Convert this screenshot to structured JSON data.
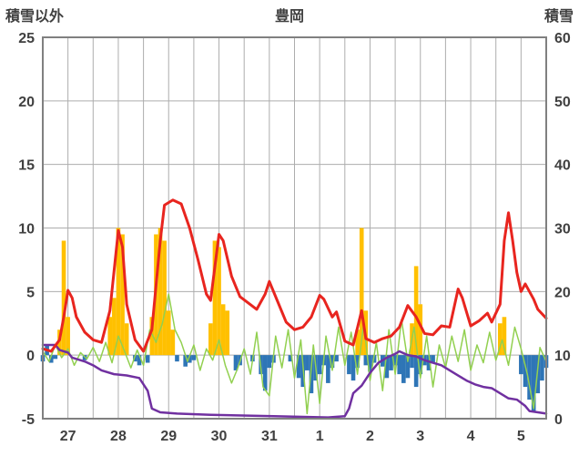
{
  "header": {
    "left_axis_title": "積雪以外",
    "center_title": "豊岡",
    "right_axis_title": "積雪"
  },
  "chart_data": {
    "type": "line",
    "title": "豊岡",
    "x_unit": "hours from day 27 00:00 (hourly weather chart)",
    "x_range": [
      0,
      240
    ],
    "gridline_every_hours": 12,
    "grid_color": "#ADADAD",
    "border_color": "#808080",
    "left_axis": {
      "title": "積雪以外",
      "range": [
        -5,
        25
      ],
      "ticks": [
        25,
        20,
        15,
        10,
        5,
        0,
        -5
      ]
    },
    "right_axis": {
      "title": "積雪",
      "range": [
        0,
        60
      ],
      "ticks": [
        60,
        50,
        40,
        30,
        20,
        10,
        0
      ]
    },
    "x_ticks": [
      {
        "hour": 12,
        "label": "27"
      },
      {
        "hour": 36,
        "label": "28"
      },
      {
        "hour": 60,
        "label": "29"
      },
      {
        "hour": 84,
        "label": "30"
      },
      {
        "hour": 108,
        "label": "31"
      },
      {
        "hour": 132,
        "label": "1"
      },
      {
        "hour": 156,
        "label": "2"
      },
      {
        "hour": 180,
        "label": "3"
      },
      {
        "hour": 204,
        "label": "4"
      },
      {
        "hour": 228,
        "label": "5"
      }
    ],
    "series": [
      {
        "name": "yellow-bars",
        "type": "bar",
        "color": "#FFC000",
        "bar_width_hours": 2,
        "points": [
          [
            8,
            2
          ],
          [
            10,
            9
          ],
          [
            12,
            3
          ],
          [
            32,
            3
          ],
          [
            34,
            4.5
          ],
          [
            36,
            10
          ],
          [
            38,
            9.5
          ],
          [
            40,
            2.5
          ],
          [
            52,
            3
          ],
          [
            54,
            9.5
          ],
          [
            56,
            10
          ],
          [
            58,
            9
          ],
          [
            60,
            3.5
          ],
          [
            62,
            2
          ],
          [
            80,
            2.5
          ],
          [
            82,
            9
          ],
          [
            84,
            8.5
          ],
          [
            86,
            4
          ],
          [
            88,
            3.5
          ],
          [
            150,
            2
          ],
          [
            152,
            10
          ],
          [
            154,
            3.5
          ],
          [
            176,
            2.5
          ],
          [
            178,
            7
          ],
          [
            180,
            4
          ],
          [
            218,
            2.5
          ],
          [
            220,
            3
          ]
        ]
      },
      {
        "name": "blue-bars",
        "type": "bar",
        "color": "#2E75B6",
        "bar_width_hours": 2,
        "points": [
          [
            0,
            -0.5
          ],
          [
            2,
            0.8
          ],
          [
            4,
            -0.6
          ],
          [
            6,
            -0.3
          ],
          [
            20,
            -0.4
          ],
          [
            44,
            -0.5
          ],
          [
            46,
            -0.8
          ],
          [
            50,
            -0.6
          ],
          [
            64,
            -0.5
          ],
          [
            68,
            -0.9
          ],
          [
            70,
            -0.6
          ],
          [
            72,
            -0.4
          ],
          [
            92,
            -1.2
          ],
          [
            94,
            -0.8
          ],
          [
            100,
            -0.5
          ],
          [
            104,
            -1.5
          ],
          [
            106,
            -2.8
          ],
          [
            108,
            -1.0
          ],
          [
            110,
            -0.6
          ],
          [
            118,
            -0.5
          ],
          [
            122,
            -1.8
          ],
          [
            124,
            -2.5
          ],
          [
            126,
            -1.2
          ],
          [
            128,
            -3.0
          ],
          [
            130,
            -2.0
          ],
          [
            132,
            -1.5
          ],
          [
            134,
            -0.8
          ],
          [
            136,
            -2.2
          ],
          [
            138,
            -1.0
          ],
          [
            140,
            -0.5
          ],
          [
            146,
            -1.5
          ],
          [
            148,
            -2.0
          ],
          [
            150,
            -1.0
          ],
          [
            154,
            -0.8
          ],
          [
            156,
            -1.3
          ],
          [
            158,
            -0.6
          ],
          [
            162,
            -0.9
          ],
          [
            164,
            -1.8
          ],
          [
            166,
            -1.2
          ],
          [
            168,
            -0.8
          ],
          [
            170,
            -1.5
          ],
          [
            172,
            -2.2
          ],
          [
            174,
            -1.8
          ],
          [
            176,
            -1.0
          ],
          [
            178,
            -2.5
          ],
          [
            180,
            -1.5
          ],
          [
            182,
            -0.8
          ],
          [
            184,
            -1.2
          ],
          [
            186,
            -0.6
          ],
          [
            228,
            -1.5
          ],
          [
            230,
            -2.5
          ],
          [
            232,
            -3.5
          ],
          [
            234,
            -4.5
          ],
          [
            236,
            -3.0
          ],
          [
            238,
            -2.0
          ],
          [
            240,
            -1.0
          ]
        ]
      },
      {
        "name": "green-line",
        "type": "line-sampled",
        "color": "#92D050",
        "width": 1.5,
        "start_hour": 0,
        "step_hours": 3,
        "values": [
          0.3,
          -0.5,
          0.8,
          -0.2,
          0.5,
          -0.8,
          0.2,
          -0.3,
          0.6,
          -0.5,
          1.0,
          -0.6,
          1.5,
          0.3,
          -1.0,
          0.4,
          -0.8,
          2.0,
          1.0,
          2.5,
          4.8,
          2.0,
          1.0,
          -0.5,
          0.8,
          -1.2,
          0.5,
          -0.4,
          1.2,
          -0.8,
          -2.2,
          -1.0,
          0.5,
          -1.5,
          1.8,
          -2.5,
          -3.2,
          1.5,
          -1.0,
          2.0,
          -1.8,
          1.2,
          -4.6,
          0.8,
          -3.8,
          1.5,
          -1.2,
          2.2,
          -0.8,
          1.8,
          -1.5,
          2.5,
          -2.0,
          1.0,
          -2.8,
          2.0,
          -1.5,
          2.8,
          -0.5,
          2.2,
          -1.8,
          1.5,
          -2.5,
          0.8,
          -1.0,
          1.5,
          -0.5,
          2.0,
          -1.2,
          0.8,
          -0.6,
          1.8,
          -0.4,
          1.2,
          -0.8,
          2.2,
          0.5,
          -1.5,
          -4.2,
          0.6,
          -0.5
        ]
      },
      {
        "name": "purple-snow-depth-line",
        "type": "line",
        "color": "#7030A0",
        "width": 2.5,
        "points": [
          [
            0,
            0.8
          ],
          [
            6,
            0.8
          ],
          [
            8,
            0.4
          ],
          [
            12,
            0.2
          ],
          [
            14,
            -0.2
          ],
          [
            20,
            -0.5
          ],
          [
            24,
            -0.8
          ],
          [
            28,
            -1.2
          ],
          [
            34,
            -1.5
          ],
          [
            40,
            -1.6
          ],
          [
            46,
            -1.8
          ],
          [
            50,
            -2.8
          ],
          [
            52,
            -4.2
          ],
          [
            56,
            -4.5
          ],
          [
            64,
            -4.6
          ],
          [
            80,
            -4.7
          ],
          [
            110,
            -4.8
          ],
          [
            136,
            -4.9
          ],
          [
            144,
            -4.8
          ],
          [
            146,
            -4.2
          ],
          [
            148,
            -3.0
          ],
          [
            152,
            -2.4
          ],
          [
            156,
            -1.4
          ],
          [
            160,
            -0.6
          ],
          [
            164,
            -0.2
          ],
          [
            168,
            0.1
          ],
          [
            170,
            0.3
          ],
          [
            174,
            0.0
          ],
          [
            178,
            -0.1
          ],
          [
            182,
            -0.4
          ],
          [
            186,
            -0.6
          ],
          [
            190,
            -0.8
          ],
          [
            194,
            -1.2
          ],
          [
            198,
            -1.6
          ],
          [
            202,
            -2.0
          ],
          [
            206,
            -2.3
          ],
          [
            210,
            -2.5
          ],
          [
            214,
            -2.6
          ],
          [
            218,
            -3.0
          ],
          [
            222,
            -3.4
          ],
          [
            226,
            -3.5
          ],
          [
            230,
            -4.0
          ],
          [
            232,
            -4.4
          ],
          [
            236,
            -4.5
          ],
          [
            240,
            -4.6
          ]
        ]
      },
      {
        "name": "red-temperature-line",
        "type": "line",
        "color": "#E8251F",
        "width": 3,
        "points": [
          [
            0,
            0.5
          ],
          [
            4,
            0.3
          ],
          [
            8,
            1.2
          ],
          [
            10,
            3.0
          ],
          [
            12,
            5.1
          ],
          [
            14,
            4.5
          ],
          [
            16,
            3.0
          ],
          [
            20,
            1.8
          ],
          [
            24,
            1.2
          ],
          [
            28,
            1.0
          ],
          [
            32,
            3.5
          ],
          [
            36,
            9.8
          ],
          [
            38,
            8.5
          ],
          [
            40,
            4.0
          ],
          [
            44,
            1.2
          ],
          [
            48,
            0.3
          ],
          [
            52,
            2.0
          ],
          [
            56,
            9.0
          ],
          [
            58,
            11.8
          ],
          [
            62,
            12.2
          ],
          [
            66,
            11.9
          ],
          [
            70,
            10.0
          ],
          [
            74,
            7.5
          ],
          [
            78,
            4.8
          ],
          [
            80,
            4.3
          ],
          [
            84,
            9.5
          ],
          [
            86,
            9.0
          ],
          [
            90,
            6.2
          ],
          [
            94,
            4.6
          ],
          [
            98,
            4.1
          ],
          [
            102,
            3.6
          ],
          [
            106,
            4.8
          ],
          [
            108,
            5.8
          ],
          [
            112,
            4.2
          ],
          [
            116,
            2.6
          ],
          [
            120,
            2.0
          ],
          [
            124,
            2.2
          ],
          [
            128,
            3.0
          ],
          [
            132,
            4.7
          ],
          [
            134,
            4.4
          ],
          [
            138,
            3.0
          ],
          [
            140,
            3.4
          ],
          [
            144,
            1.1
          ],
          [
            148,
            0.8
          ],
          [
            152,
            3.5
          ],
          [
            154,
            1.3
          ],
          [
            158,
            1.0
          ],
          [
            162,
            1.3
          ],
          [
            166,
            1.5
          ],
          [
            170,
            2.2
          ],
          [
            174,
            3.9
          ],
          [
            178,
            3.0
          ],
          [
            182,
            1.7
          ],
          [
            186,
            1.6
          ],
          [
            190,
            2.3
          ],
          [
            194,
            2.2
          ],
          [
            198,
            5.2
          ],
          [
            200,
            4.5
          ],
          [
            204,
            2.3
          ],
          [
            208,
            2.7
          ],
          [
            212,
            3.3
          ],
          [
            214,
            2.6
          ],
          [
            218,
            4.0
          ],
          [
            220,
            9.0
          ],
          [
            222,
            11.2
          ],
          [
            224,
            9.0
          ],
          [
            226,
            6.5
          ],
          [
            228,
            5.0
          ],
          [
            230,
            5.6
          ],
          [
            232,
            5.0
          ],
          [
            234,
            4.4
          ],
          [
            236,
            3.6
          ],
          [
            240,
            2.9
          ]
        ]
      }
    ]
  }
}
